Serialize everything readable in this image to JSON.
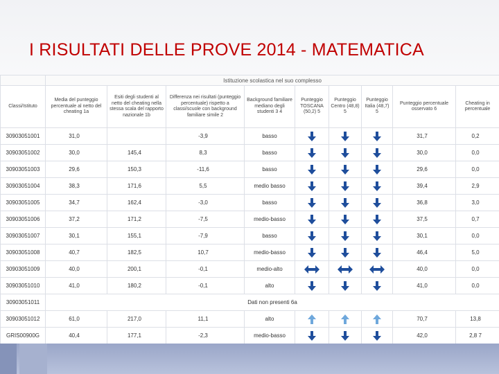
{
  "title": "I RISULTATI DELLE PROVE 2014 - MATEMATICA",
  "group_header": "Istituzione scolastica nel suo complesso",
  "headers": [
    "Classi/Istituto",
    "Media del punteggio percentuale al netto del cheating 1a",
    "Esiti degli studenti al netto del cheating nella stessa scala del rapporto nazionale 1b",
    "Differenza nei risultati (punteggio percentuale) rispetto a classi/scuole con background familiare simile 2",
    "Background familiare mediano degli studenti 3 4",
    "Punteggio TOSCANA (50,2) 5",
    "Punteggio Centro (48,8) 5",
    "Punteggio Italia (48,7) 5",
    "Punteggio percentuale osservato 6",
    "Cheating in percentuale"
  ],
  "colors": {
    "arrow_blue": "#1f4e9c",
    "light_blue": "#6fa8dc",
    "band": "#9aa6c8"
  },
  "rows": [
    {
      "code": "30903051001",
      "media": "31,0",
      "esiti": "",
      "diff": "-3,9",
      "bg": "basso",
      "arrows": [
        "down",
        "down",
        "down"
      ],
      "osservato": "31,7",
      "cheating": "0,2"
    },
    {
      "code": "30903051002",
      "media": "30,0",
      "esiti": "145,4",
      "diff": "8,3",
      "bg": "basso",
      "arrows": [
        "down",
        "down",
        "down"
      ],
      "osservato": "30,0",
      "cheating": "0,0"
    },
    {
      "code": "30903051003",
      "media": "29,6",
      "esiti": "150,3",
      "diff": "-11,6",
      "bg": "basso",
      "arrows": [
        "down",
        "down",
        "down"
      ],
      "osservato": "29,6",
      "cheating": "0,0"
    },
    {
      "code": "30903051004",
      "media": "38,3",
      "esiti": "171,6",
      "diff": "5,5",
      "bg": "medio basso",
      "arrows": [
        "down",
        "down",
        "down"
      ],
      "osservato": "39,4",
      "cheating": "2,9"
    },
    {
      "code": "30903051005",
      "media": "34,7",
      "esiti": "162,4",
      "diff": "-3,0",
      "bg": "basso",
      "arrows": [
        "down",
        "down",
        "down"
      ],
      "osservato": "36,8",
      "cheating": "3,0"
    },
    {
      "code": "30903051006",
      "media": "37,2",
      "esiti": "171,2",
      "diff": "-7,5",
      "bg": "medio-basso",
      "arrows": [
        "down",
        "down",
        "down"
      ],
      "osservato": "37,5",
      "cheating": "0,7"
    },
    {
      "code": "30903051007",
      "media": "30,1",
      "esiti": "155,1",
      "diff": "-7,9",
      "bg": "basso",
      "arrows": [
        "down",
        "down",
        "down"
      ],
      "osservato": "30,1",
      "cheating": "0,0"
    },
    {
      "code": "30903051008",
      "media": "40,7",
      "esiti": "182,5",
      "diff": "10,7",
      "bg": "medio-basso",
      "arrows": [
        "down",
        "down",
        "down"
      ],
      "osservato": "46,4",
      "cheating": "5,0"
    },
    {
      "code": "30903051009",
      "media": "40,0",
      "esiti": "200,1",
      "diff": "-0,1",
      "bg": "medio-alto",
      "arrows": [
        "equal",
        "equal",
        "equal"
      ],
      "osservato": "40,0",
      "cheating": "0,0"
    },
    {
      "code": "30903051010",
      "media": "41,0",
      "esiti": "180,2",
      "diff": "-0,1",
      "bg": "alto",
      "arrows": [
        "down",
        "down",
        "down"
      ],
      "osservato": "41,0",
      "cheating": "0,0"
    },
    {
      "code": "30903051011",
      "merged": "Dati non presenti 6a"
    },
    {
      "code": "30903051012",
      "media": "61,0",
      "esiti": "217,0",
      "diff": "11,1",
      "bg": "alto",
      "arrows": [
        "up",
        "up",
        "up"
      ],
      "osservato": "70,7",
      "cheating": "13,8"
    },
    {
      "code": "GRIS00900G",
      "media": "40,4",
      "esiti": "177,1",
      "diff": "-2,3",
      "bg": "medio-basso",
      "arrows": [
        "down",
        "down",
        "down"
      ],
      "osservato": "42,0",
      "cheating": "2,8 7"
    }
  ]
}
